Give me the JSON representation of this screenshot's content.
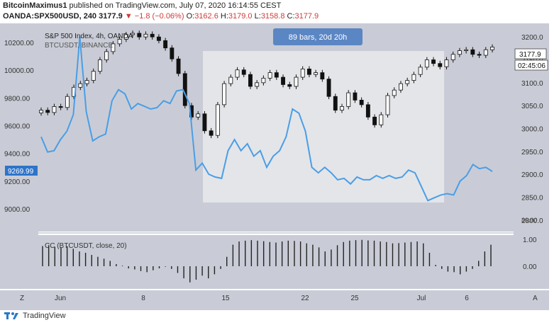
{
  "header": {
    "author": "BitcoinMaximus1",
    "published_text": "published on TradingView.com, July 07, 2020 16:14:55 CEST",
    "symbol_line": "OANDA:SPX500USD, 240",
    "last": "3177.9",
    "change": "▼ −1.8 (−0.06%)",
    "ohlc": {
      "o_label": "O:",
      "o": "3162.6",
      "h_label": "H:",
      "h": "3179.0",
      "l_label": "L:",
      "l": "3158.8",
      "c_label": "C:",
      "c": "3177.9"
    }
  },
  "footer": {
    "brand": "TradingView"
  },
  "colors": {
    "pane_bg": "#c9ccd6",
    "highlight_bg": "#e4e5e9",
    "candle_up": "#ffffff",
    "candle_down": "#111111",
    "btc_line": "#4a9ee6",
    "badge_bg": "#5b86c4",
    "down_red": "#d13a3a"
  },
  "chart_data": [
    {
      "type": "candlestick",
      "title": "S&P 500 Index, 4h, OANDA",
      "series_name": "SPX500USD",
      "axis": "right",
      "ylim": [
        2775,
        3225
      ],
      "yticks": [
        "3200.0",
        "3150.0",
        "3100.0",
        "3050.0",
        "3000.0",
        "2950.0",
        "2900.0",
        "2850.0",
        "2800.0"
      ],
      "x_ticks": [
        "Jun",
        "8",
        "15",
        "22",
        "25",
        "Jul",
        "6"
      ],
      "last_price_label": "3177.9",
      "countdown_label": "02:45:06",
      "close_path": [
        3040,
        3035,
        3048,
        3046,
        3070,
        3090,
        3098,
        3105,
        3125,
        3150,
        3168,
        3185,
        3195,
        3205,
        3208,
        3200,
        3206,
        3200,
        3192,
        3176,
        3152,
        3120,
        3050,
        3025,
        3032,
        2995,
        2985,
        3052,
        3098,
        3112,
        3128,
        3118,
        3092,
        3100,
        3110,
        3122,
        3112,
        3096,
        3092,
        3112,
        3130,
        3118,
        3122,
        3108,
        3070,
        3040,
        3048,
        3078,
        3062,
        3052,
        3025,
        3008,
        3030,
        3072,
        3084,
        3098,
        3105,
        3118,
        3134,
        3150,
        3142,
        3135,
        3150,
        3162,
        3170,
        3172,
        3162,
        3160,
        3172,
        3177.9
      ]
    },
    {
      "type": "line",
      "series_name": "BTCUSDT, BINANCE",
      "axis": "left",
      "ylim": [
        8880,
        10630
      ],
      "yticks": [
        "10200.00",
        "10000.00",
        "9800.00",
        "9600.00",
        "9400.00",
        "9200.00",
        "9000.00"
      ],
      "last_value_label": "9269.99",
      "values": [
        9520,
        9410,
        9420,
        9500,
        9560,
        9680,
        10240,
        9700,
        9490,
        9520,
        9540,
        9780,
        9860,
        9830,
        9720,
        9760,
        9740,
        9720,
        9730,
        9780,
        9760,
        9850,
        9860,
        9760,
        9280,
        9330,
        9250,
        9230,
        9220,
        9420,
        9500,
        9420,
        9470,
        9380,
        9420,
        9300,
        9380,
        9420,
        9520,
        9720,
        9690,
        9560,
        9300,
        9260,
        9300,
        9260,
        9210,
        9220,
        9180,
        9230,
        9210,
        9210,
        9240,
        9220,
        9240,
        9220,
        9230,
        9280,
        9260,
        9160,
        9060,
        9080,
        9100,
        9110,
        9100,
        9200,
        9240,
        9320,
        9290,
        9300,
        9269.99
      ]
    },
    {
      "type": "histogram",
      "title": "CC (BTCUSDT, close, 20)",
      "ylim": [
        -0.65,
        1.0
      ],
      "yticks": [
        "1.00",
        "0.00"
      ],
      "values": [
        0.75,
        0.78,
        0.72,
        0.7,
        0.74,
        0.65,
        0.55,
        0.5,
        0.42,
        0.35,
        0.28,
        0.2,
        0.08,
        0.02,
        -0.08,
        -0.12,
        -0.18,
        -0.22,
        -0.15,
        -0.08,
        -0.02,
        -0.1,
        -0.25,
        -0.45,
        -0.6,
        -0.5,
        -0.35,
        -0.45,
        -0.3,
        -0.1,
        0.35,
        0.8,
        0.92,
        0.95,
        0.97,
        0.95,
        0.93,
        0.9,
        0.88,
        0.92,
        0.95,
        0.94,
        0.92,
        0.85,
        0.8,
        0.7,
        0.55,
        0.62,
        0.78,
        0.9,
        0.95,
        0.97,
        0.98,
        0.96,
        0.95,
        0.92,
        0.9,
        0.85,
        0.86,
        0.88,
        0.9,
        0.92,
        0.85,
        0.5,
        0.05,
        -0.1,
        -0.2,
        -0.22,
        -0.3,
        -0.2,
        -0.1,
        0.2,
        0.55,
        0.8
      ]
    }
  ],
  "overlay": {
    "range_badge": "89 bars, 20d 20h",
    "left_axis_btn": "Z",
    "right_axis_btn": "A"
  }
}
